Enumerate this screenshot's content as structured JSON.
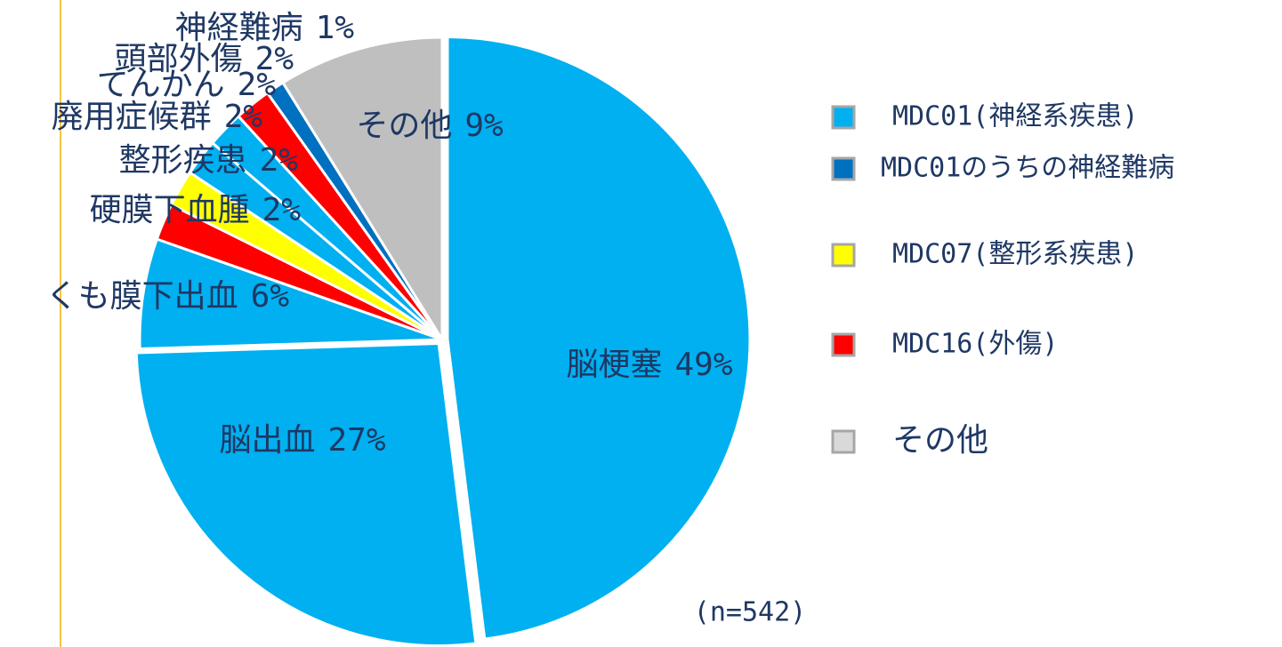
{
  "chart_data": {
    "type": "pie",
    "categories": [
      "脳梗塞",
      "脳出血",
      "くも膜下出血",
      "硬膜下血腫",
      "整形疾患",
      "廃用症候群",
      "てんかん",
      "頭部外傷",
      "神経難病",
      "その他"
    ],
    "values": [
      49,
      27,
      6,
      2,
      2,
      2,
      2,
      2,
      1,
      9
    ],
    "value_labels": [
      "49%",
      "27%",
      "6%",
      "2%",
      "2%",
      "2%",
      "2%",
      "2%",
      "1%",
      "9%"
    ],
    "colors": [
      "#00b0f0",
      "#00b0f0",
      "#00b0f0",
      "#ff0000",
      "#ffff00",
      "#00b0f0",
      "#00b0f0",
      "#ff0000",
      "#0070c0",
      "#bfbfbf"
    ],
    "legend": [
      {
        "name": "MDC01(神経系疾患)",
        "color": "#00b0f0"
      },
      {
        "name": "MDC01のうちの神経難病",
        "color": "#0070c0"
      },
      {
        "name": "MDC07(整形系疾患)",
        "color": "#ffff00"
      },
      {
        "name": "MDC16(外傷)",
        "color": "#ff0000"
      },
      {
        "name": "その他",
        "color": "#d9d9d9"
      }
    ],
    "annotation": "(n=542)"
  }
}
